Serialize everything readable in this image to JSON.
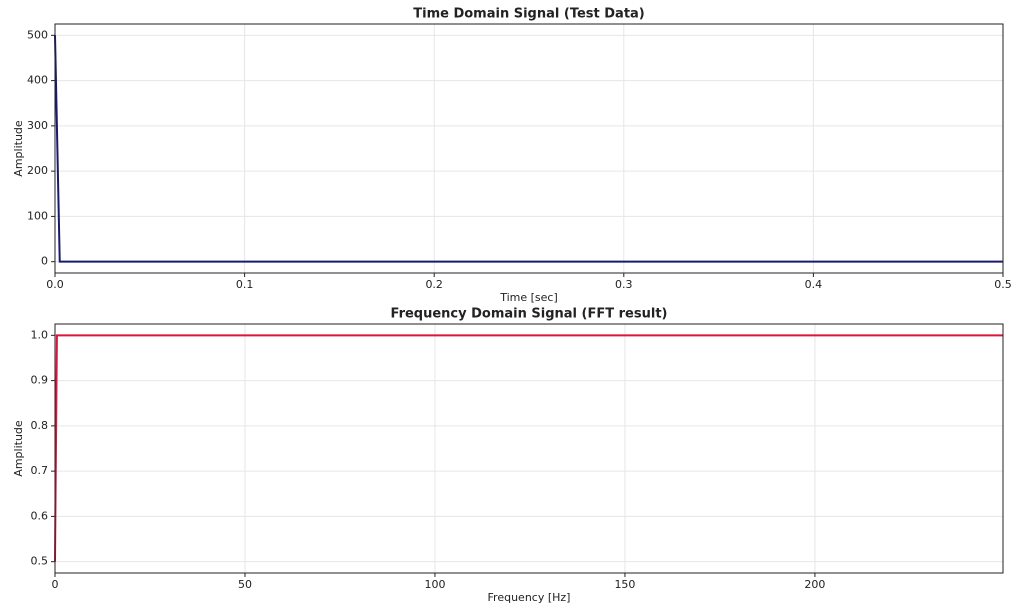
{
  "chart_data": [
    {
      "type": "line",
      "title": "Time Domain Signal (Test Data)",
      "x_label": "Time [sec]",
      "y_label": "Amplitude",
      "series": [
        {
          "name": "Test Data",
          "color": "#191970",
          "x": [
            0,
            0.0025,
            0.5
          ],
          "values": [
            500,
            0,
            0
          ]
        }
      ],
      "xlim": [
        0,
        0.5
      ],
      "xticks": [
        {
          "value": 0,
          "label": "0.0"
        },
        0.1,
        0.2,
        0.3,
        0.4,
        0.5
      ],
      "ylim": [
        -25,
        525
      ],
      "yticks": [
        0,
        100,
        200,
        300,
        400,
        500
      ],
      "grid": true
    },
    {
      "type": "line",
      "title": "Frequency Domain Signal (FFT result)",
      "x_label": "Frequency [Hz]",
      "y_label": "Amplitude",
      "series": [
        {
          "name": "FFT result",
          "color": "#dc143c",
          "x": [
            0,
            0.5,
            249.5
          ],
          "values": [
            0.5,
            1.0,
            1.0
          ]
        }
      ],
      "xlim": [
        0,
        249.5
      ],
      "xticks": [
        0,
        50,
        100,
        150,
        200
      ],
      "ylim": [
        0.475,
        1.025
      ],
      "yticks": [
        0.5,
        0.6,
        0.7,
        0.8,
        0.9,
        {
          "value": 1,
          "label": "1.0"
        }
      ],
      "grid": true
    }
  ]
}
